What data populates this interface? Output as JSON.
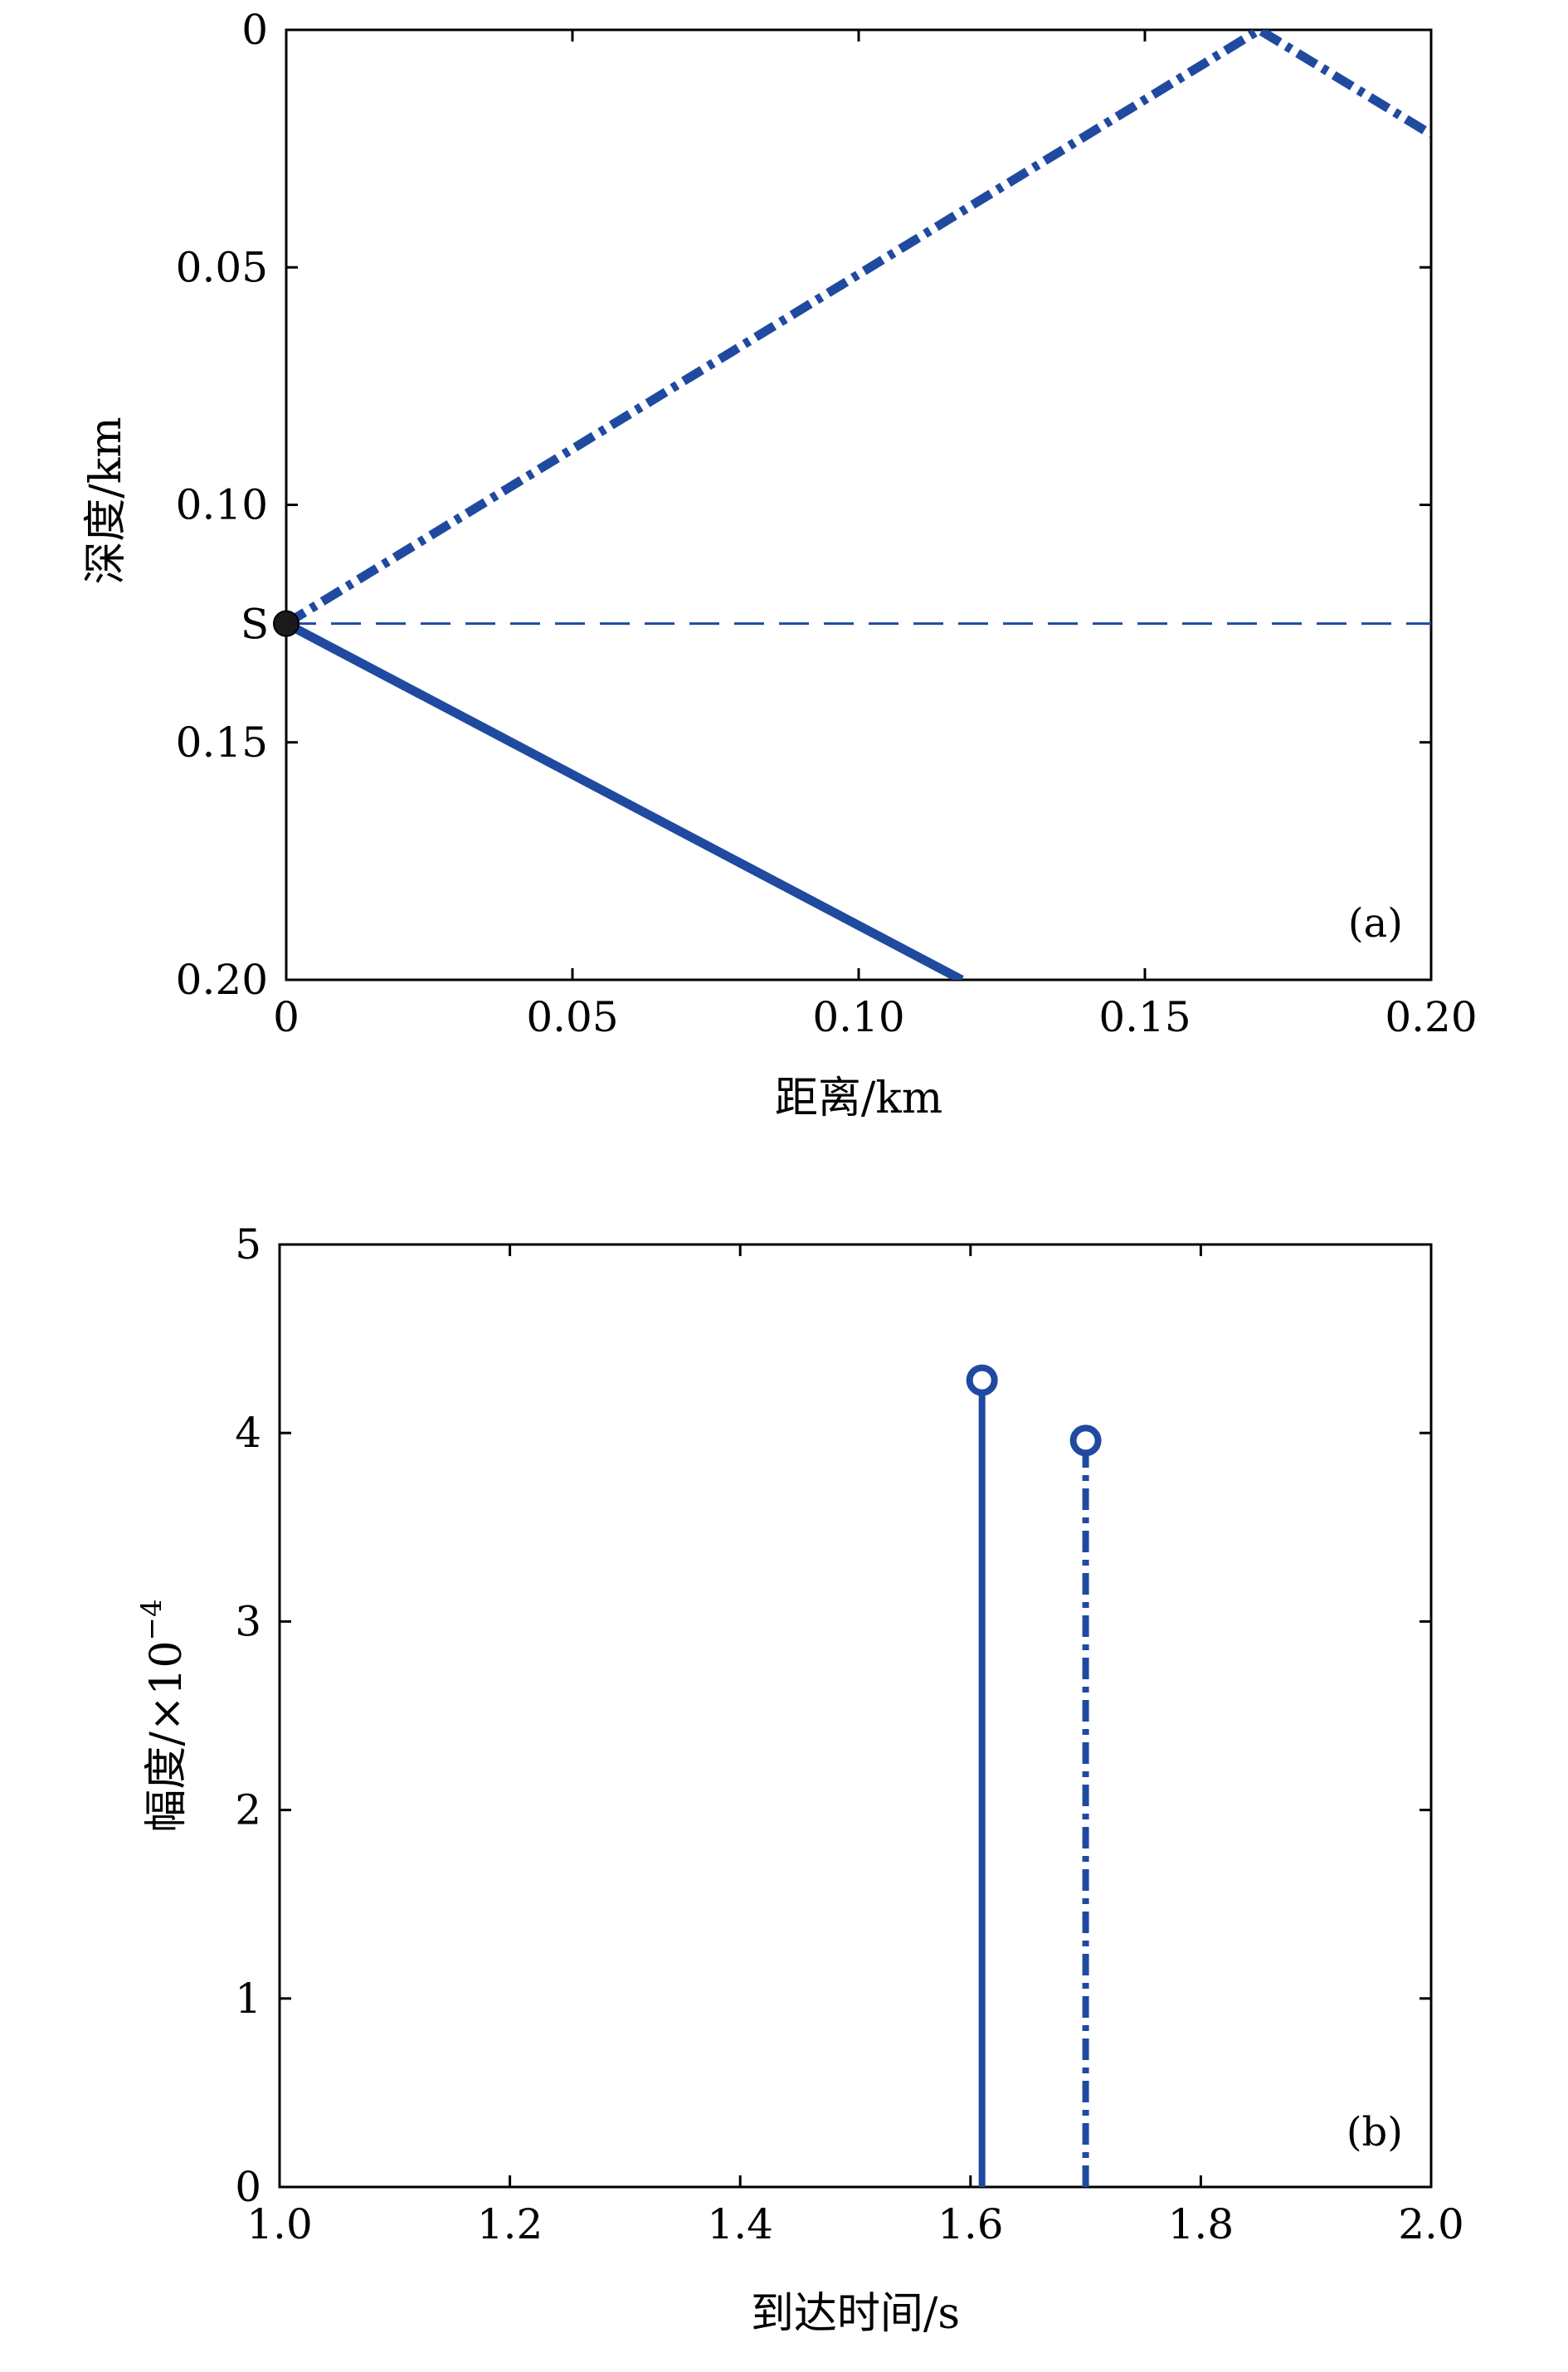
{
  "colors": {
    "series": "#1f4aa0",
    "source_marker": "#1a1a1a",
    "axis": "#000000"
  },
  "chart_data": [
    {
      "type": "line",
      "panel_label": "(a)",
      "xlabel": "距离/km",
      "ylabel": "深度/km",
      "xlim": [
        0,
        0.2
      ],
      "ylim": [
        0,
        0.2
      ],
      "y_reversed": true,
      "x_ticks": [
        0,
        0.05,
        0.1,
        0.15,
        0.2
      ],
      "x_tick_labels": [
        "0",
        "0.05",
        "0.10",
        "0.15",
        "0.20"
      ],
      "y_ticks": [
        0,
        0.05,
        0.1,
        0.15,
        0.2
      ],
      "y_tick_labels": [
        "0",
        "0.05",
        "0.10",
        "0.15",
        "0.20"
      ],
      "source": {
        "label": "S",
        "x": 0,
        "y": 0.125
      },
      "series": [
        {
          "style": "solid",
          "x": [
            0,
            0.118
          ],
          "y": [
            0.125,
            0.2
          ]
        },
        {
          "style": "dashdot",
          "x": [
            0,
            0.17,
            0.2
          ],
          "y": [
            0.125,
            0,
            0.022
          ]
        },
        {
          "style": "dashed",
          "x": [
            0,
            0.2
          ],
          "y": [
            0.125,
            0.125
          ]
        }
      ]
    },
    {
      "type": "stem",
      "panel_label": "(b)",
      "xlabel": "到达时间/s",
      "ylabel_main": "幅度/×10",
      "ylabel_exponent": "−4",
      "xlim": [
        1.0,
        2.0
      ],
      "ylim": [
        0,
        5
      ],
      "x_ticks": [
        1.0,
        1.2,
        1.4,
        1.6,
        1.8,
        2.0
      ],
      "x_tick_labels": [
        "1.0",
        "1.2",
        "1.4",
        "1.6",
        "1.8",
        "2.0"
      ],
      "y_ticks": [
        0,
        1,
        2,
        3,
        4,
        5
      ],
      "y_tick_labels": [
        "0",
        "1",
        "2",
        "3",
        "4",
        "5"
      ],
      "series": [
        {
          "style": "solid",
          "x": 1.61,
          "y": 4.28
        },
        {
          "style": "dashdot",
          "x": 1.7,
          "y": 3.96
        }
      ]
    }
  ]
}
